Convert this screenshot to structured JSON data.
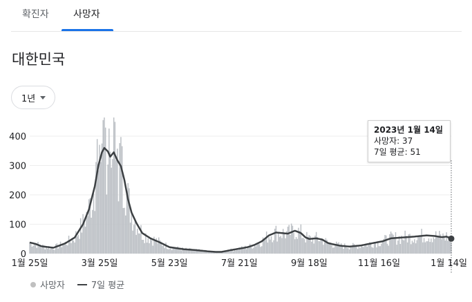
{
  "tabs": [
    {
      "label": "확진자",
      "active": false
    },
    {
      "label": "사망자",
      "active": true
    }
  ],
  "region_title": "대한민국",
  "range_select": {
    "value": "1년"
  },
  "tooltip": {
    "date_prefix": "2023년 1월 ",
    "date_day": "14일",
    "deaths_label": "사망자",
    "deaths_value": "37",
    "avg_label": "7일 평균",
    "avg_value": "51"
  },
  "legend": {
    "bars_label": "사망자",
    "line_label": "7일 평균"
  },
  "colors": {
    "bar": "#bdc1c6",
    "line": "#3c4043",
    "accent": "#1a73e8"
  },
  "chart_data": {
    "type": "bar",
    "days": 357,
    "x_tick_labels": [
      "1월 25일",
      "3월 25일",
      "5월 23일",
      "7월 21일",
      "9월 18일",
      "11월 16일",
      "1월 14일"
    ],
    "x_tick_days": [
      0,
      59,
      118,
      177,
      236,
      295,
      354
    ],
    "y_ticks": [
      0,
      100,
      200,
      300,
      400
    ],
    "ylim": [
      0,
      460
    ],
    "series": [
      {
        "name": "사망자",
        "type": "bar"
      },
      {
        "name": "7일 평균",
        "type": "line"
      }
    ],
    "avg_keypoints": [
      [
        0,
        38
      ],
      [
        5,
        33
      ],
      [
        10,
        25
      ],
      [
        20,
        20
      ],
      [
        30,
        35
      ],
      [
        38,
        55
      ],
      [
        45,
        100
      ],
      [
        50,
        150
      ],
      [
        55,
        230
      ],
      [
        58,
        300
      ],
      [
        61,
        345
      ],
      [
        63,
        360
      ],
      [
        66,
        348
      ],
      [
        68,
        330
      ],
      [
        71,
        345
      ],
      [
        74,
        318
      ],
      [
        77,
        298
      ],
      [
        80,
        250
      ],
      [
        83,
        185
      ],
      [
        86,
        140
      ],
      [
        90,
        105
      ],
      [
        95,
        70
      ],
      [
        102,
        52
      ],
      [
        110,
        38
      ],
      [
        118,
        22
      ],
      [
        130,
        15
      ],
      [
        140,
        12
      ],
      [
        150,
        8
      ],
      [
        157,
        6
      ],
      [
        162,
        6
      ],
      [
        170,
        12
      ],
      [
        177,
        17
      ],
      [
        184,
        22
      ],
      [
        190,
        30
      ],
      [
        196,
        42
      ],
      [
        202,
        62
      ],
      [
        208,
        72
      ],
      [
        213,
        70
      ],
      [
        218,
        68
      ],
      [
        224,
        78
      ],
      [
        229,
        70
      ],
      [
        233,
        55
      ],
      [
        236,
        50
      ],
      [
        242,
        52
      ],
      [
        247,
        48
      ],
      [
        252,
        36
      ],
      [
        256,
        32
      ],
      [
        262,
        27
      ],
      [
        270,
        24
      ],
      [
        280,
        28
      ],
      [
        290,
        36
      ],
      [
        298,
        42
      ],
      [
        305,
        52
      ],
      [
        315,
        55
      ],
      [
        325,
        58
      ],
      [
        335,
        62
      ],
      [
        342,
        60
      ],
      [
        348,
        56
      ],
      [
        352,
        58
      ],
      [
        356,
        51
      ]
    ],
    "last_point": {
      "date": "2023년 1월 14일",
      "deaths": 37,
      "avg": 51
    }
  }
}
